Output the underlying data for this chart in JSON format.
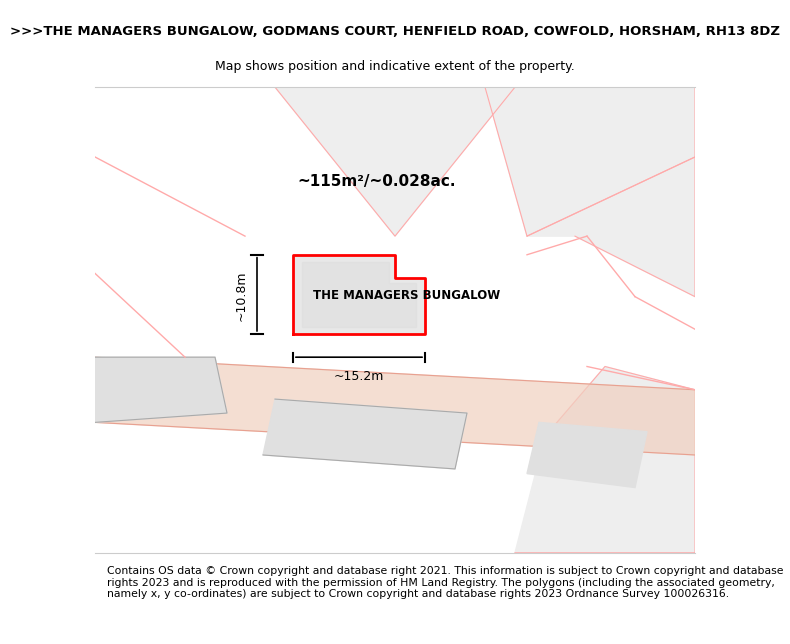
{
  "title_line1": ">>>THE MANAGERS BUNGALOW, GODMANS COURT, HENFIELD ROAD, COWFOLD, HORSHAM, RH13 8DZ",
  "title_line2": "Map shows position and indicative extent of the property.",
  "footer_text": "Contains OS data © Crown copyright and database right 2021. This information is subject to Crown copyright and database rights 2023 and is reproduced with the permission of HM Land Registry. The polygons (including the associated geometry, namely x, y co-ordinates) are subject to Crown copyright and database rights 2023 Ordnance Survey 100026316.",
  "area_label": "~115m²/~0.028ac.",
  "property_label": "THE MANAGERS BUNGALOW",
  "width_label": "~15.2m",
  "height_label": "~10.8m",
  "bg_color": "#f5f5f5",
  "map_bg": "#f9f9f9",
  "building_fill": "#e8e8e8",
  "building_stroke": "#ff0000",
  "road_color": "#f0d0c0",
  "road_stroke": "#e8a090",
  "other_building_fill": "#e0e0e0",
  "other_building_stroke": "#c0c0c0",
  "pink_line_color": "#ffaaaa",
  "title_fontsize": 9.5,
  "subtitle_fontsize": 9,
  "footer_fontsize": 7.8
}
